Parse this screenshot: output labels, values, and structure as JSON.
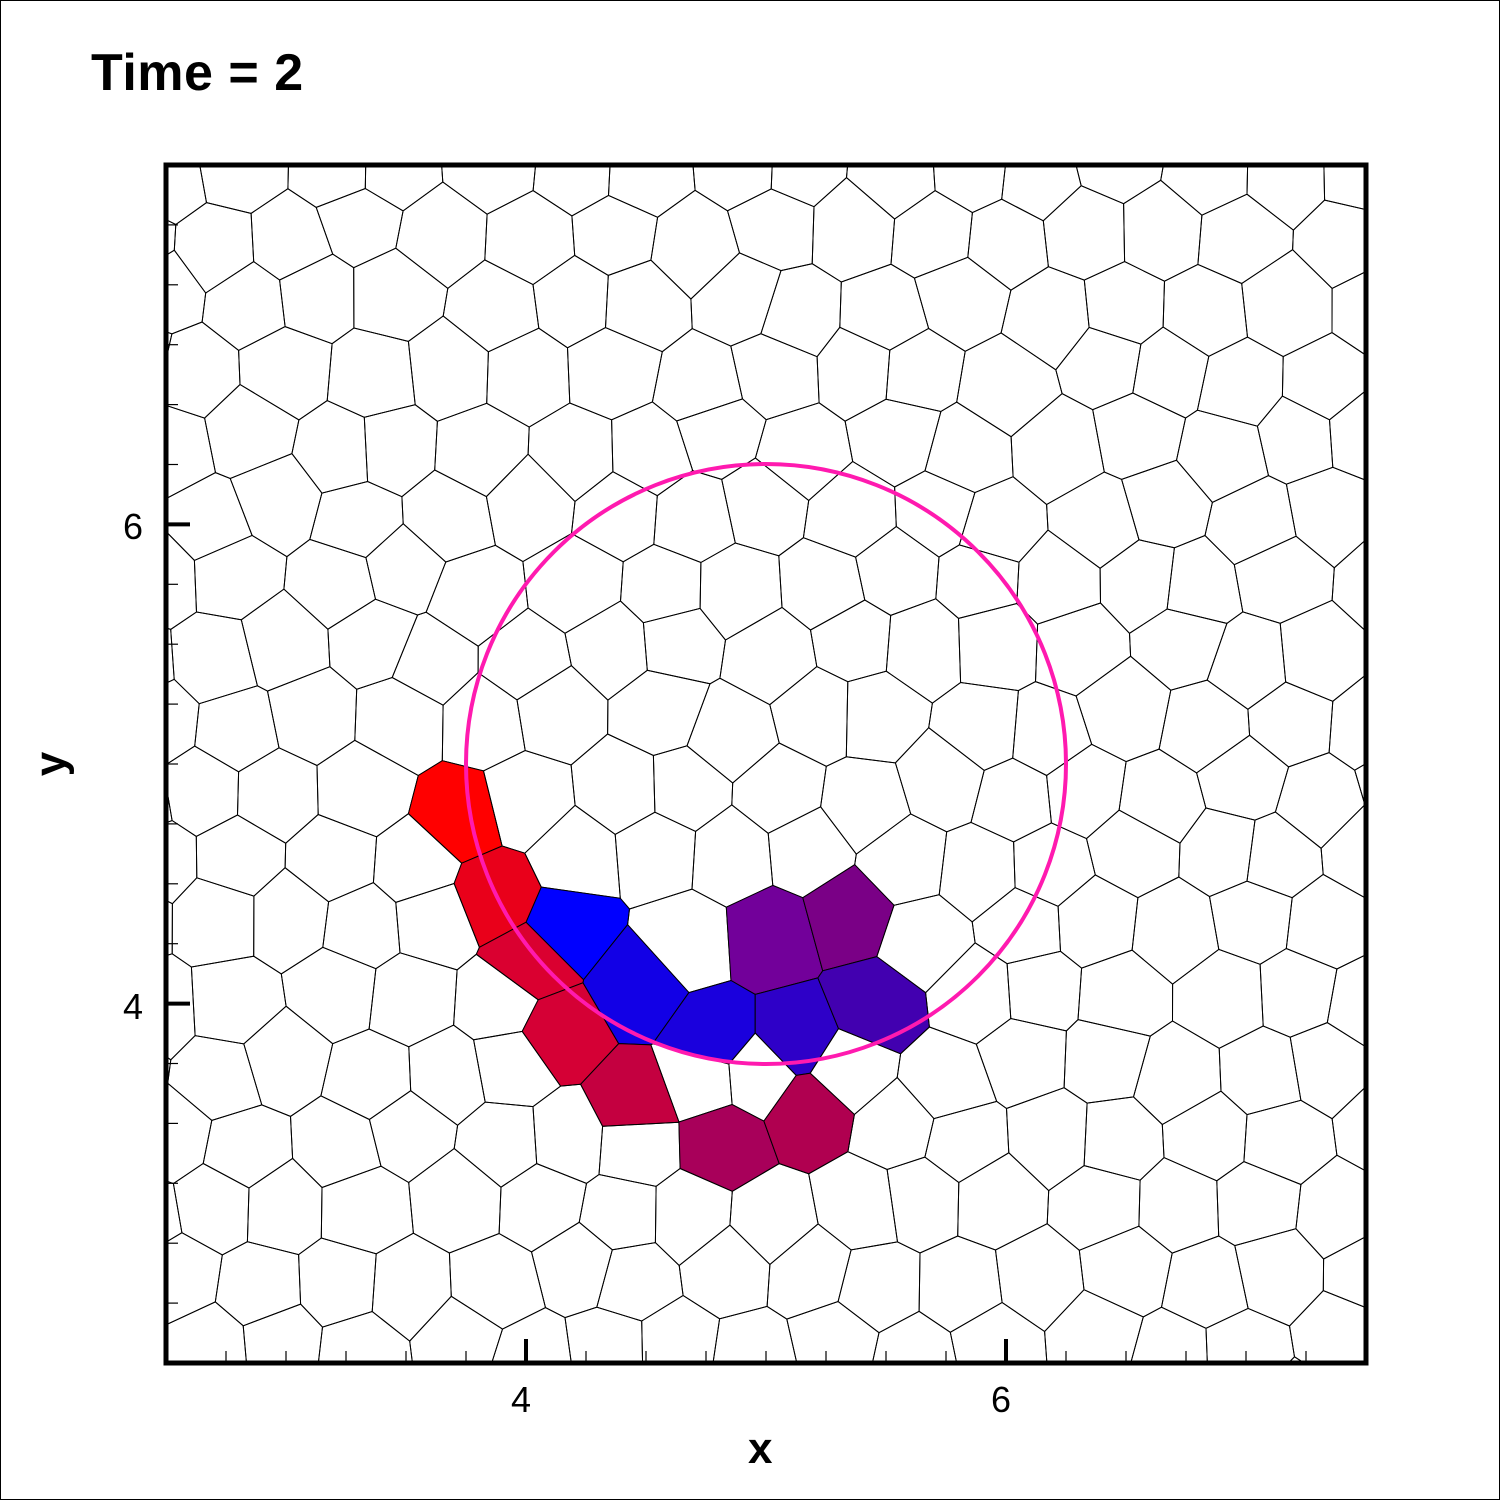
{
  "chart_data": {
    "type": "mesh",
    "title": "Time = 2",
    "xlabel": "x",
    "ylabel": "y",
    "xlim": [
      2.5,
      7.5
    ],
    "ylim": [
      2.5,
      7.5
    ],
    "x_ticks": [
      4,
      6
    ],
    "y_ticks": [
      4,
      6
    ],
    "x_tick_labels": [
      "4",
      "6"
    ],
    "y_tick_labels": [
      "4",
      "6"
    ],
    "grid": false,
    "mesh": "polygonal (Voronoi-like) cells",
    "circle": {
      "center": [
        5.0,
        5.0
      ],
      "radius": 1.25,
      "color": "#ff1aaf"
    },
    "colored_cells": [
      {
        "x": 3.73,
        "y": 4.78,
        "color": "#ff0000"
      },
      {
        "x": 3.87,
        "y": 4.45,
        "color": "#e9001a"
      },
      {
        "x": 4.02,
        "y": 4.17,
        "color": "#da0030"
      },
      {
        "x": 4.13,
        "y": 3.88,
        "color": "#d50035"
      },
      {
        "x": 4.45,
        "y": 3.58,
        "color": "#c40040"
      },
      {
        "x": 4.82,
        "y": 3.42,
        "color": "#a8005a"
      },
      {
        "x": 5.18,
        "y": 3.55,
        "color": "#b00050"
      },
      {
        "x": 4.17,
        "y": 4.32,
        "color": "#0000ff"
      },
      {
        "x": 4.47,
        "y": 4.08,
        "color": "#1200e6"
      },
      {
        "x": 4.78,
        "y": 3.86,
        "color": "#1a00dd"
      },
      {
        "x": 5.13,
        "y": 3.86,
        "color": "#2e00c8"
      },
      {
        "x": 5.45,
        "y": 3.99,
        "color": "#4200b0"
      },
      {
        "x": 5.02,
        "y": 4.28,
        "color": "#72009a"
      },
      {
        "x": 5.35,
        "y": 4.37,
        "color": "#7a0086"
      }
    ]
  },
  "colors": {
    "mesh_line": "#000000",
    "frame": "#000000",
    "circle": "#ff1aaf"
  }
}
